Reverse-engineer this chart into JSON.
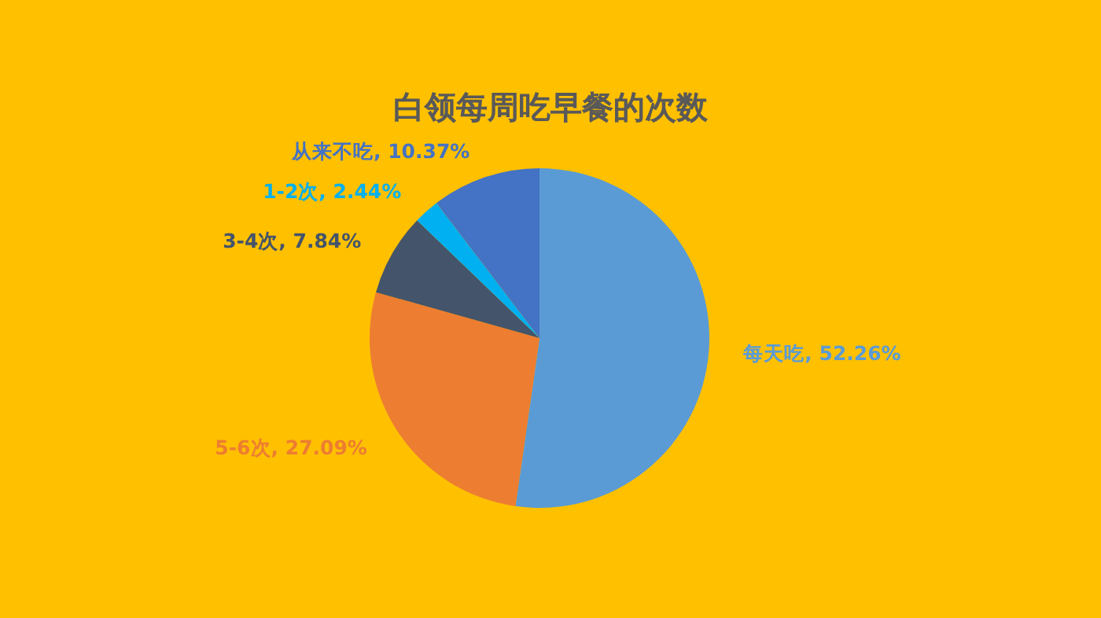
{
  "chart_data": {
    "type": "pie",
    "title": "白领每周吃早餐的次数",
    "categories": [
      "每天吃",
      "5-6次",
      "3-4次",
      "1-2次",
      "从来不吃"
    ],
    "values": [
      52.26,
      27.09,
      7.84,
      2.44,
      10.37
    ],
    "value_labels": [
      ", 52.26%",
      ", 27.09%",
      ", 7.84%",
      ", 2.44%",
      ", 10.37%"
    ],
    "colors": [
      "#5b9bd5",
      "#ed7d31",
      "#44546a",
      "#00b0f0",
      "#4472c4"
    ]
  }
}
